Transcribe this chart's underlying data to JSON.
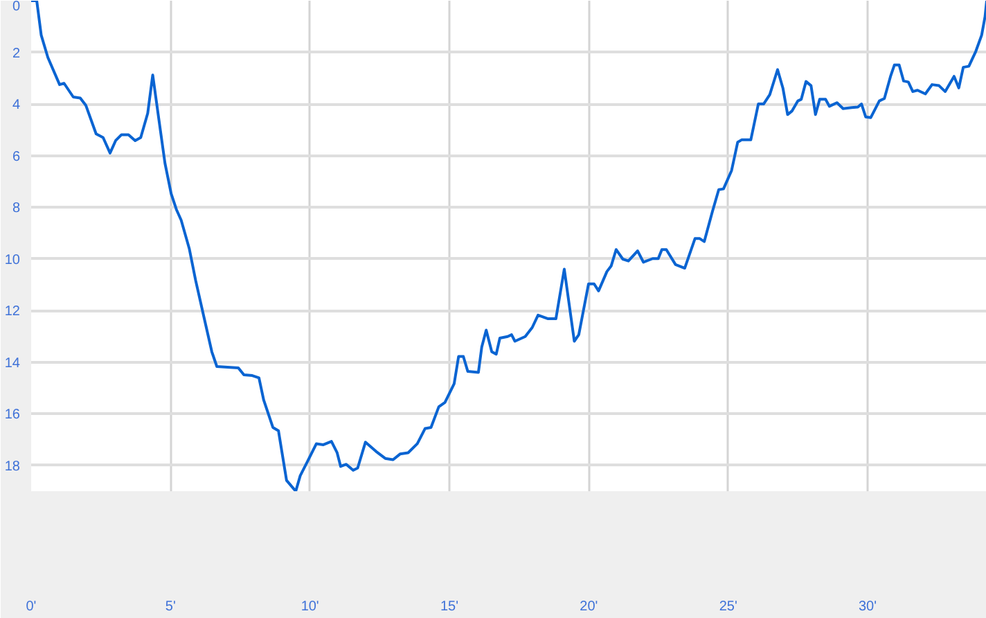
{
  "chart_data": {
    "type": "line",
    "xlim": [
      0,
      34.27
    ],
    "ylim": [
      19,
      0
    ],
    "xticks": [
      {
        "value": 0,
        "label": "0'"
      },
      {
        "value": 5,
        "label": "5'"
      },
      {
        "value": 10,
        "label": "10'"
      },
      {
        "value": 15,
        "label": "15'"
      },
      {
        "value": 20,
        "label": "20'"
      },
      {
        "value": 25,
        "label": "25'"
      },
      {
        "value": 30,
        "label": "30'"
      }
    ],
    "yticks": [
      0,
      2,
      4,
      6,
      8,
      10,
      12,
      14,
      16,
      18
    ],
    "grid": true,
    "marker": "none",
    "line_style": "solid",
    "series": [
      {
        "color": "#0a64d2",
        "x": [
          0,
          0.2,
          0.36,
          0.6,
          1.02,
          1.18,
          1.51,
          1.76,
          1.96,
          2.33,
          2.58,
          2.83,
          3.03,
          3.24,
          3.49,
          3.73,
          3.93,
          4.18,
          4.36,
          4.56,
          4.8,
          5.02,
          5.21,
          5.38,
          5.67,
          5.9,
          6.2,
          6.48,
          6.66,
          7.43,
          7.63,
          7.93,
          8.17,
          8.34,
          8.67,
          8.87,
          9.16,
          9.49,
          9.65,
          9.9,
          10.23,
          10.48,
          10.77,
          10.97,
          11.1,
          11.3,
          11.55,
          11.71,
          11.99,
          12.37,
          12.7,
          12.98,
          13.23,
          13.52,
          13.85,
          14.13,
          14.34,
          14.62,
          14.84,
          15.17,
          15.33,
          15.5,
          15.66,
          16.04,
          16.16,
          16.32,
          16.52,
          16.68,
          16.81,
          17.09,
          17.23,
          17.35,
          17.72,
          17.97,
          18.18,
          18.54,
          18.82,
          19.12,
          19.48,
          19.64,
          19.99,
          20.19,
          20.35,
          20.65,
          20.8,
          20.98,
          21.22,
          21.42,
          21.75,
          21.96,
          22.29,
          22.49,
          22.62,
          22.78,
          23.11,
          23.44,
          23.81,
          23.97,
          24.14,
          24.43,
          24.66,
          24.83,
          25.12,
          25.34,
          25.48,
          25.81,
          26.08,
          26.27,
          26.49,
          26.77,
          26.96,
          27.13,
          27.29,
          27.5,
          27.62,
          27.79,
          27.97,
          28.13,
          28.28,
          28.49,
          28.63,
          28.9,
          29.12,
          29.43,
          29.65,
          29.78,
          29.93,
          30.11,
          30.42,
          30.6,
          30.83,
          30.96,
          31.13,
          31.29,
          31.46,
          31.62,
          31.79,
          32.07,
          32.31,
          32.56,
          32.78,
          33.1,
          33.27,
          33.43,
          33.63,
          33.88,
          34.09,
          34.21,
          34.27
        ],
        "values": [
          0,
          0,
          1.33,
          2.2,
          3.25,
          3.2,
          3.73,
          3.77,
          4.05,
          5.16,
          5.3,
          5.9,
          5.42,
          5.19,
          5.19,
          5.42,
          5.3,
          4.36,
          2.88,
          4.44,
          6.3,
          7.47,
          8.09,
          8.5,
          9.6,
          10.84,
          12.27,
          13.6,
          14.17,
          14.22,
          14.49,
          14.52,
          14.61,
          15.47,
          16.53,
          16.66,
          18.58,
          19,
          18.4,
          17.87,
          17.16,
          17.2,
          17.07,
          17.5,
          18.04,
          17.96,
          18.19,
          18.1,
          17.1,
          17.46,
          17.73,
          17.78,
          17.56,
          17.51,
          17.16,
          16.57,
          16.53,
          15.73,
          15.56,
          14.84,
          13.78,
          13.78,
          14.36,
          14.4,
          13.42,
          12.76,
          13.6,
          13.69,
          13.07,
          13.01,
          12.94,
          13.19,
          13.01,
          12.66,
          12.18,
          12.32,
          12.32,
          10.4,
          13.19,
          12.94,
          10.97,
          10.97,
          11.24,
          10.49,
          10.28,
          9.64,
          10.01,
          10.08,
          9.69,
          10.13,
          9.99,
          9.99,
          9.64,
          9.64,
          10.22,
          10.36,
          9.21,
          9.21,
          9.33,
          8.18,
          7.32,
          7.29,
          6.58,
          5.48,
          5.39,
          5.39,
          4.0,
          4.0,
          3.64,
          2.67,
          3.38,
          4.41,
          4.27,
          3.88,
          3.82,
          3.13,
          3.29,
          4.41,
          3.82,
          3.82,
          4.09,
          3.95,
          4.18,
          4.14,
          4.12,
          4.0,
          4.5,
          4.53,
          3.88,
          3.79,
          2.9,
          2.49,
          2.49,
          3.11,
          3.15,
          3.52,
          3.47,
          3.61,
          3.25,
          3.29,
          3.52,
          2.93,
          3.38,
          2.58,
          2.54,
          1.96,
          1.33,
          0.62,
          0
        ]
      }
    ]
  }
}
